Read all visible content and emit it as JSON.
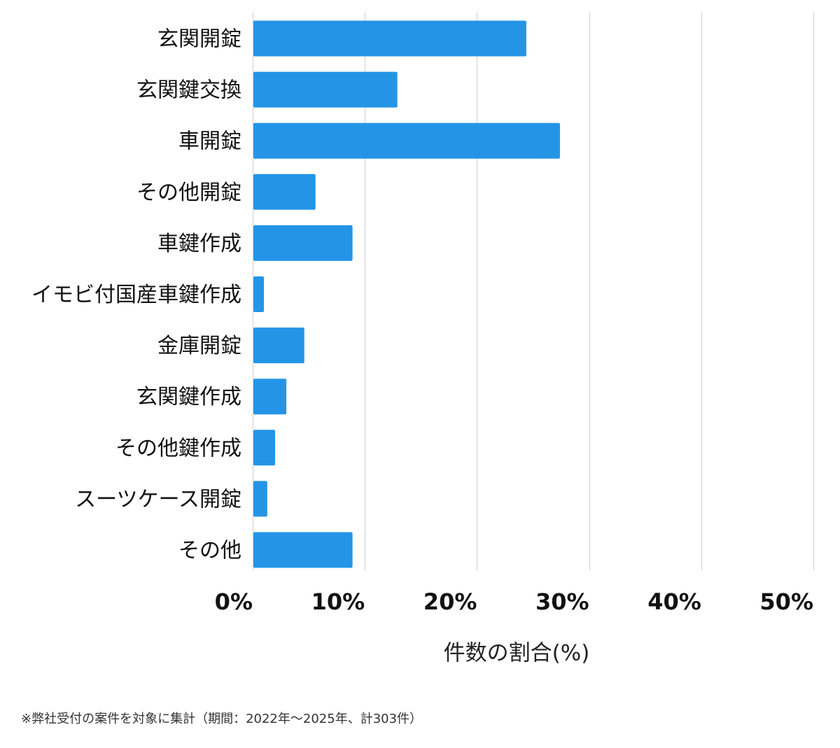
{
  "chart_data": {
    "type": "bar",
    "orientation": "horizontal",
    "categories": [
      "玄関開錠",
      "玄関鍵交換",
      "車開錠",
      "その他開錠",
      "車鍵作成",
      "イモビ付国産車鍵作成",
      "金庫開錠",
      "玄関鍵作成",
      "その他鍵作成",
      "スーツケース開錠",
      "その他"
    ],
    "values": [
      24.4,
      12.9,
      27.4,
      5.6,
      8.9,
      1.0,
      4.6,
      3.0,
      2.0,
      1.3,
      8.9
    ],
    "xlabel": "件数の割合(%)",
    "xlim": [
      0,
      50
    ],
    "ticks": [
      0,
      10,
      20,
      30,
      40,
      50
    ],
    "tick_labels": [
      "0%",
      "10%",
      "20%",
      "30%",
      "40%",
      "50%"
    ],
    "grid": true,
    "bar_color": "#2495e6"
  },
  "footnote": "※弊社受付の案件を対象に集計（期間：2022年〜2025年、計303件）"
}
